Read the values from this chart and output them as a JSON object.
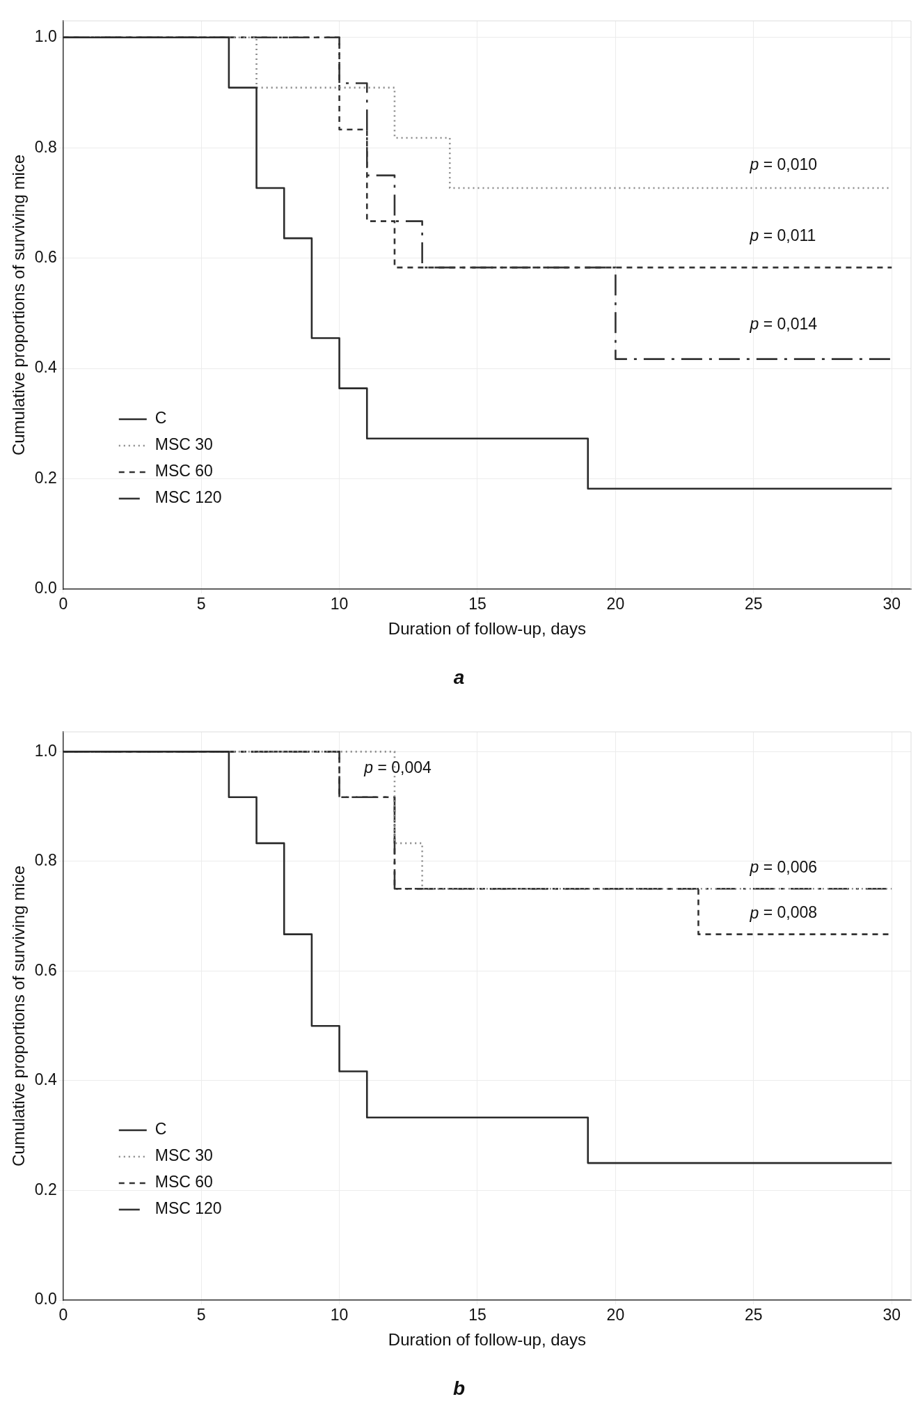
{
  "chart_data": [
    {
      "type": "step",
      "title": "a",
      "xlabel": "Duration of follow-up, days",
      "ylabel": "Cumulative proportions of surviving mice",
      "xlim": [
        0,
        30.7
      ],
      "ylim": [
        0,
        1.03
      ],
      "xticks": [
        0,
        5,
        10,
        15,
        20,
        25,
        30
      ],
      "yticks": [
        {
          "value": 0,
          "label": "0.0"
        },
        {
          "value": 0.2,
          "label": "0.2"
        },
        {
          "value": 0.4,
          "label": "0.4"
        },
        {
          "value": 0.6,
          "label": "0.6"
        },
        {
          "value": 0.8,
          "label": "0.8"
        },
        {
          "value": 1,
          "label": "1.0"
        }
      ],
      "grid": true,
      "legend": "bottom left",
      "series": [
        {
          "name": "C",
          "color": "#2b2b2b",
          "line_style": "solid",
          "x": [
            0,
            6,
            7,
            8,
            9,
            10,
            11,
            19,
            30
          ],
          "values": [
            1,
            0.909,
            0.727,
            0.636,
            0.455,
            0.364,
            0.273,
            0.182,
            0.182
          ]
        },
        {
          "name": "MSC 30",
          "color": "#8a8a8a",
          "line_style": "dotted",
          "x": [
            0,
            7,
            12,
            14,
            30
          ],
          "values": [
            1,
            0.909,
            0.818,
            0.727,
            0.727
          ]
        },
        {
          "name": "MSC 60",
          "color": "#333333",
          "line_style": "dashed",
          "x": [
            0,
            10,
            11,
            12,
            30
          ],
          "values": [
            1,
            0.833,
            0.667,
            0.583,
            0.583
          ]
        },
        {
          "name": "MSC 120",
          "color": "#333333",
          "line_style": "dashed",
          "x": [
            0,
            10,
            11,
            12,
            13,
            20,
            30
          ],
          "values": [
            1,
            0.917,
            0.75,
            0.667,
            0.583,
            0.417,
            0.417
          ]
        }
      ],
      "annotations": [
        "p = 0,010",
        "p = 0,011",
        "p = 0,014"
      ]
    },
    {
      "type": "step",
      "title": "b",
      "xlabel": "Duration of follow-up, days",
      "ylabel": "Cumulative proportions of surviving mice",
      "xlim": [
        0,
        30.7
      ],
      "ylim": [
        0,
        1.036
      ],
      "xticks": [
        0,
        5,
        10,
        15,
        20,
        25,
        30
      ],
      "yticks": [
        {
          "value": 0,
          "label": "0.0"
        },
        {
          "value": 0.2,
          "label": "0.2"
        },
        {
          "value": 0.4,
          "label": "0.4"
        },
        {
          "value": 0.6,
          "label": "0.6"
        },
        {
          "value": 0.8,
          "label": "0.8"
        },
        {
          "value": 1,
          "label": "1.0"
        }
      ],
      "grid": true,
      "legend": "bottom left",
      "series": [
        {
          "name": "C",
          "color": "#2b2b2b",
          "line_style": "solid",
          "x": [
            0,
            6,
            7,
            8,
            9,
            10,
            11,
            19,
            30
          ],
          "values": [
            1,
            0.917,
            0.833,
            0.667,
            0.5,
            0.417,
            0.333,
            0.25,
            0.25
          ]
        },
        {
          "name": "MSC 30",
          "color": "#8a8a8a",
          "line_style": "dotted",
          "x": [
            0,
            12,
            13,
            30
          ],
          "values": [
            1,
            0.833,
            0.75,
            0.75
          ]
        },
        {
          "name": "MSC 60",
          "color": "#333333",
          "line_style": "dashed",
          "x": [
            0,
            10,
            12,
            23,
            30
          ],
          "values": [
            1,
            0.917,
            0.75,
            0.667,
            0.667
          ]
        },
        {
          "name": "MSC 120",
          "color": "#333333",
          "line_style": "dashed",
          "x": [
            0,
            10,
            12,
            30
          ],
          "values": [
            1,
            0.917,
            0.75,
            0.75
          ]
        }
      ],
      "annotations": [
        "p = 0,004",
        "p = 0,006",
        "p = 0,008"
      ]
    }
  ]
}
